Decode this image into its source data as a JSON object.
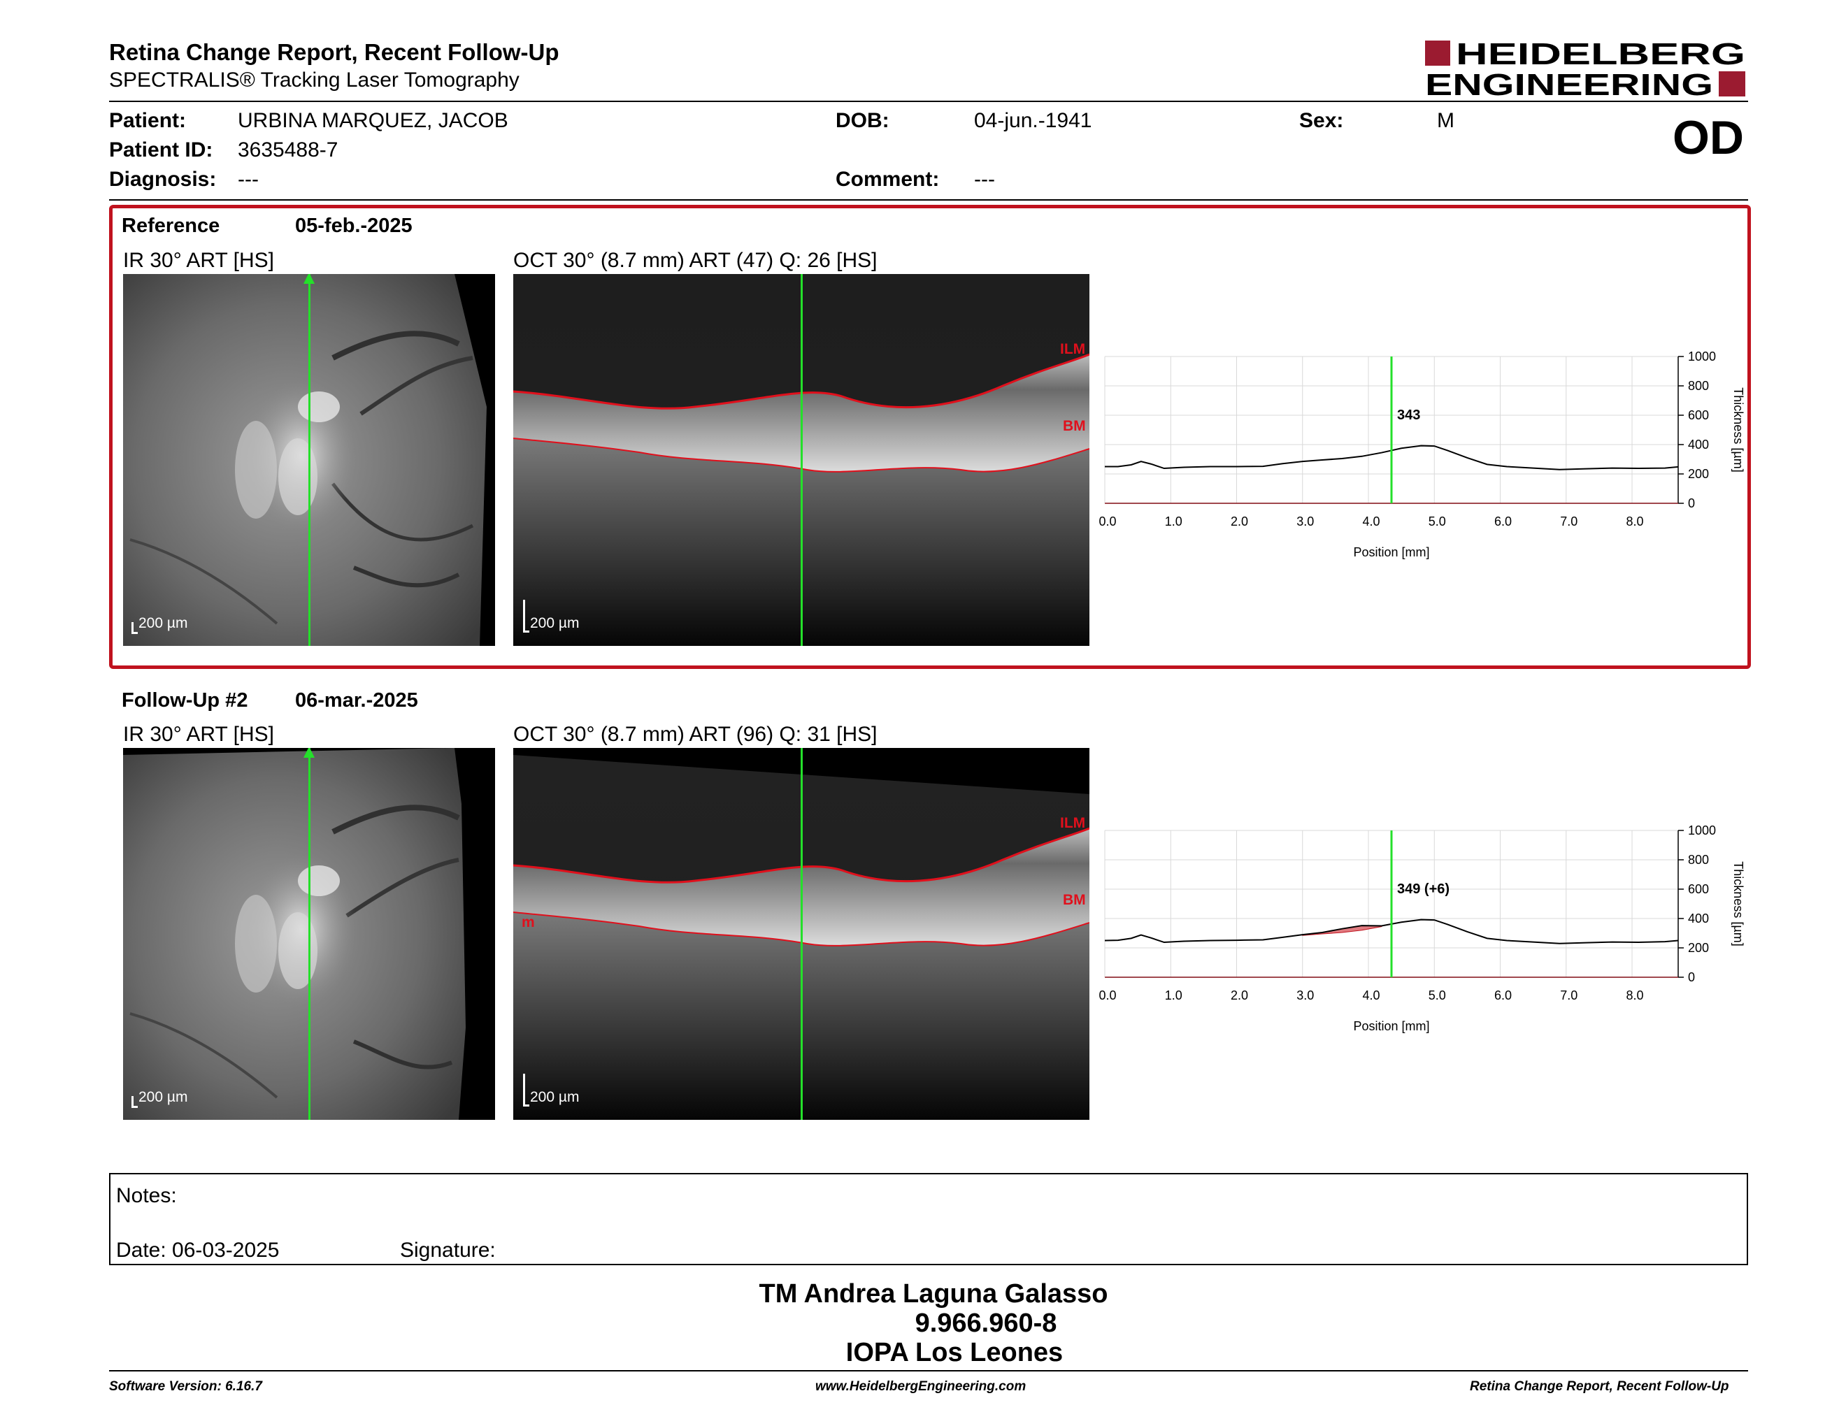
{
  "header": {
    "title": "Retina Change Report, Recent Follow-Up",
    "subtitle": "SPECTRALIS® Tracking Laser Tomography",
    "logo_line1": "HEIDELBERG",
    "logo_line2": "ENGINEERING"
  },
  "patient": {
    "patient_label": "Patient:",
    "patient_value": "URBINA MARQUEZ, JACOB",
    "dob_label": "DOB:",
    "dob_value": "04-jun.-1941",
    "sex_label": "Sex:",
    "sex_value": "M",
    "id_label": "Patient ID:",
    "id_value": "3635488-7",
    "diagnosis_label": "Diagnosis:",
    "diagnosis_value": "---",
    "comment_label": "Comment:",
    "comment_value": "---",
    "eye": "OD"
  },
  "reference": {
    "label": "Reference",
    "date": "05-feb.-2025",
    "ir_caption": "IR 30° ART [HS]",
    "oct_caption": "OCT 30° (8.7 mm) ART (47) Q: 26 [HS]",
    "scale": "200 µm",
    "ilm_label": "ILM",
    "bm_label": "BM",
    "thickness_label": "343"
  },
  "followup": {
    "label": "Follow-Up #2",
    "date": "06-mar.-2025",
    "ir_caption": "IR 30° ART [HS]",
    "oct_caption": "OCT 30° (8.7 mm) ART (96) Q: 31 [HS]",
    "scale": "200 µm",
    "ilm_label": "ILM",
    "bm_label": "BM",
    "bm_left_label": "m",
    "thickness_label": "349 (+6)"
  },
  "chart_common": {
    "xlabel": "Position [mm]",
    "ylabel": "Thickness [µm]",
    "x_ticks": [
      "0.0",
      "1.0",
      "2.0",
      "3.0",
      "4.0",
      "5.0",
      "6.0",
      "7.0",
      "8.0"
    ],
    "y_ticks": [
      "0",
      "200",
      "400",
      "600",
      "800",
      "1000"
    ]
  },
  "chart_data": [
    {
      "type": "line",
      "xlabel": "Position [mm]",
      "ylabel": "Thickness [µm]",
      "xlim": [
        0,
        8.7
      ],
      "ylim": [
        0,
        1000
      ],
      "grid": true,
      "marker_x": 4.35,
      "marker_label": "343",
      "series": [
        {
          "x": [
            0,
            0.2,
            0.4,
            0.55,
            0.7,
            0.9,
            1.2,
            1.6,
            2.0,
            2.4,
            2.7,
            3.0,
            3.3,
            3.6,
            3.9,
            4.2,
            4.5,
            4.8,
            5.0,
            5.2,
            5.5,
            5.8,
            6.1,
            6.5,
            6.9,
            7.3,
            7.7,
            8.1,
            8.5,
            8.7
          ],
          "y": [
            250,
            250,
            262,
            285,
            268,
            238,
            245,
            250,
            250,
            252,
            270,
            285,
            295,
            305,
            320,
            345,
            375,
            392,
            390,
            360,
            310,
            265,
            250,
            240,
            230,
            235,
            240,
            238,
            240,
            248
          ]
        }
      ]
    },
    {
      "type": "line",
      "xlabel": "Position [mm]",
      "ylabel": "Thickness [µm]",
      "xlim": [
        0,
        8.7
      ],
      "ylim": [
        0,
        1000
      ],
      "grid": true,
      "marker_x": 4.35,
      "marker_label": "349 (+6)",
      "series": [
        {
          "x": [
            0,
            0.2,
            0.4,
            0.55,
            0.7,
            0.9,
            1.2,
            1.6,
            2.0,
            2.4,
            2.7,
            3.0,
            3.3,
            3.6,
            3.9,
            4.2,
            4.5,
            4.8,
            5.0,
            5.2,
            5.5,
            5.8,
            6.1,
            6.5,
            6.9,
            7.3,
            7.7,
            8.1,
            8.5,
            8.7
          ],
          "y": [
            250,
            252,
            265,
            288,
            268,
            238,
            245,
            250,
            252,
            255,
            272,
            290,
            305,
            330,
            352,
            350,
            375,
            392,
            390,
            360,
            310,
            265,
            250,
            240,
            230,
            235,
            240,
            238,
            242,
            250
          ]
        }
      ]
    }
  ],
  "notes": {
    "title": "Notes:",
    "date": "Date: 06-03-2025",
    "signature": "Signature:"
  },
  "signer": {
    "name": "TM Andrea Laguna Galasso",
    "id": "9.966.960-8",
    "institution": "IOPA Los Leones"
  },
  "footer": {
    "version": "Software Version: 6.16.7",
    "website": "www.HeidelbergEngineering.com",
    "report": "Retina Change Report, Recent Follow-Up"
  },
  "colors": {
    "accent_red": "#c0121e",
    "logo_red": "#9b1b30",
    "marker_green": "#24e02a",
    "segment_red": "#e0101c"
  }
}
